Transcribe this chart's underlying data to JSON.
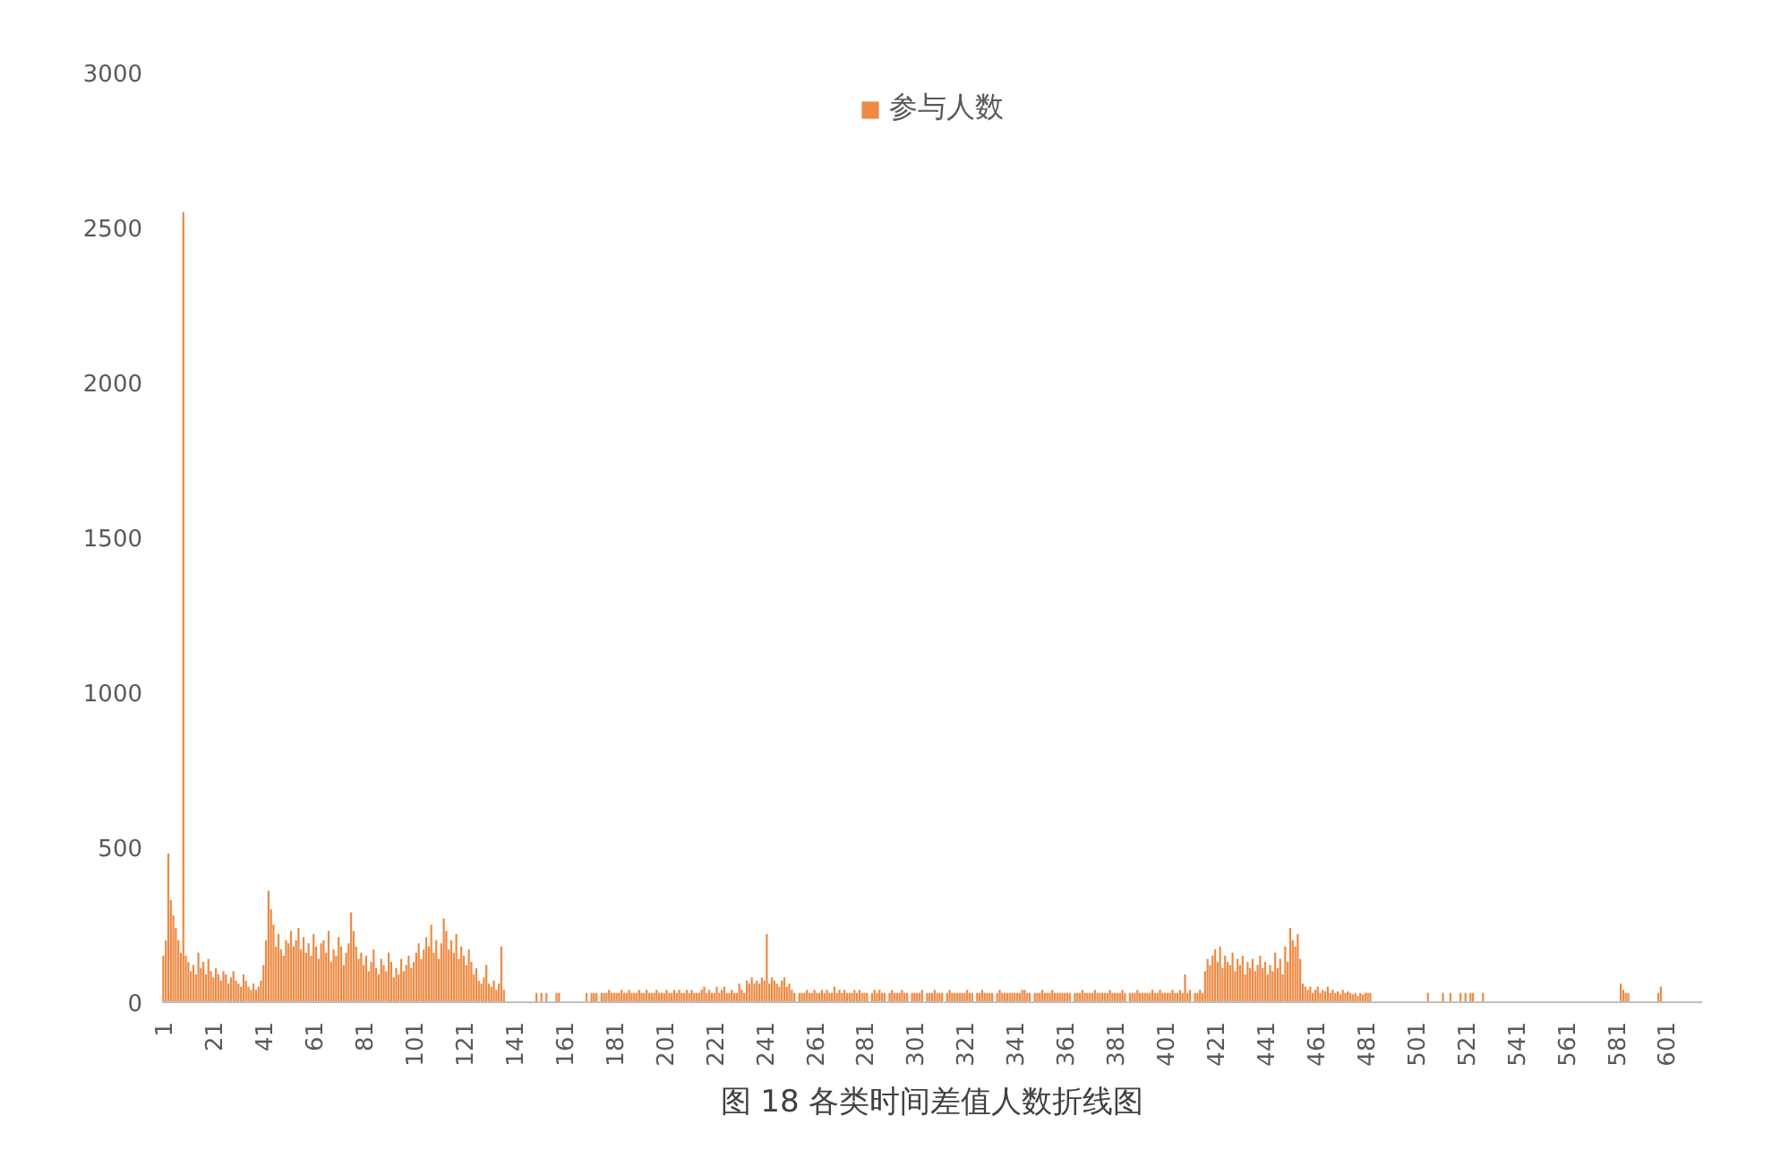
{
  "chart_data": {
    "type": "bar",
    "title": null,
    "annotations": [
      "图 18 各类时间差值人数折线图"
    ],
    "categories": [
      "1",
      null,
      null,
      null,
      null,
      null,
      null,
      null,
      null,
      null,
      null,
      null,
      null,
      null,
      null,
      null,
      null,
      null,
      null,
      null,
      "21",
      null,
      null,
      null,
      null,
      null,
      null,
      null,
      null,
      null,
      null,
      null,
      null,
      null,
      null,
      null,
      null,
      null,
      null,
      null,
      "41",
      null,
      null,
      null,
      null,
      null,
      null,
      null,
      null,
      null,
      null,
      null,
      null,
      null,
      null,
      null,
      null,
      null,
      null,
      null,
      "61",
      null,
      null,
      null,
      null,
      null,
      null,
      null,
      null,
      null,
      null,
      null,
      null,
      null,
      null,
      null,
      null,
      null,
      null,
      null,
      "81",
      null,
      null,
      null,
      null,
      null,
      null,
      null,
      null,
      null,
      null,
      null,
      null,
      null,
      null,
      null,
      null,
      null,
      null,
      null,
      "101",
      null,
      null,
      null,
      null,
      null,
      null,
      null,
      null,
      null,
      null,
      null,
      null,
      null,
      null,
      null,
      null,
      null,
      null,
      null,
      "121",
      null,
      null,
      null,
      null,
      null,
      null,
      null,
      null,
      null,
      null,
      null,
      null,
      null,
      null,
      null,
      null,
      null,
      null,
      null,
      "141",
      null,
      null,
      null,
      null,
      null,
      null,
      null,
      null,
      null,
      null,
      null,
      null,
      null,
      null,
      null,
      null,
      null,
      null,
      null,
      "161",
      null,
      null,
      null,
      null,
      null,
      null,
      null,
      null,
      null,
      null,
      null,
      null,
      null,
      null,
      null,
      null,
      null,
      null,
      null,
      "181",
      null,
      null,
      null,
      null,
      null,
      null,
      null,
      null,
      null,
      null,
      null,
      null,
      null,
      null,
      null,
      null,
      null,
      null,
      null,
      "201",
      null,
      null,
      null,
      null,
      null,
      null,
      null,
      null,
      null,
      null,
      null,
      null,
      null,
      null,
      null,
      null,
      null,
      null,
      null,
      "221",
      null,
      null,
      null,
      null,
      null,
      null,
      null,
      null,
      null,
      null,
      null,
      null,
      null,
      null,
      null,
      null,
      null,
      null,
      null,
      "241",
      null,
      null,
      null,
      null,
      null,
      null,
      null,
      null,
      null,
      null,
      null,
      null,
      null,
      null,
      null,
      null,
      null,
      null,
      null,
      "261",
      null,
      null,
      null,
      null,
      null,
      null,
      null,
      null,
      null,
      null,
      null,
      null,
      null,
      null,
      null,
      null,
      null,
      null,
      null,
      "281",
      null,
      null,
      null,
      null,
      null,
      null,
      null,
      null,
      null,
      null,
      null,
      null,
      null,
      null,
      null,
      null,
      null,
      null,
      null,
      "301",
      null,
      null,
      null,
      null,
      null,
      null,
      null,
      null,
      null,
      null,
      null,
      null,
      null,
      null,
      null,
      null,
      null,
      null,
      null,
      "321",
      null,
      null,
      null,
      null,
      null,
      null,
      null,
      null,
      null,
      null,
      null,
      null,
      null,
      null,
      null,
      null,
      null,
      null,
      null,
      "341",
      null,
      null,
      null,
      null,
      null,
      null,
      null,
      null,
      null,
      null,
      null,
      null,
      null,
      null,
      null,
      null,
      null,
      null,
      null,
      "361",
      null,
      null,
      null,
      null,
      null,
      null,
      null,
      null,
      null,
      null,
      null,
      null,
      null,
      null,
      null,
      null,
      null,
      null,
      null,
      "381",
      null,
      null,
      null,
      null,
      null,
      null,
      null,
      null,
      null,
      null,
      null,
      null,
      null,
      null,
      null,
      null,
      null,
      null,
      null,
      "401",
      null,
      null,
      null,
      null,
      null,
      null,
      null,
      null,
      null,
      null,
      null,
      null,
      null,
      null,
      null,
      null,
      null,
      null,
      null,
      "421",
      null,
      null,
      null,
      null,
      null,
      null,
      null,
      null,
      null,
      null,
      null,
      null,
      null,
      null,
      null,
      null,
      null,
      null,
      null,
      "441",
      null,
      null,
      null,
      null,
      null,
      null,
      null,
      null,
      null,
      null,
      null,
      null,
      null,
      null,
      null,
      null,
      null,
      null,
      null,
      "461",
      null,
      null,
      null,
      null,
      null,
      null,
      null,
      null,
      null,
      null,
      null,
      null,
      null,
      null,
      null,
      null,
      null,
      null,
      null,
      "481",
      null,
      null,
      null,
      null,
      null,
      null,
      null,
      null,
      null,
      null,
      null,
      null,
      null,
      null,
      null,
      null,
      null,
      null,
      null,
      "501",
      null,
      null,
      null,
      null,
      null,
      null,
      null,
      null,
      null,
      null,
      null,
      null,
      null,
      null,
      null,
      null,
      null,
      null,
      null,
      "521",
      null,
      null,
      null,
      null,
      null,
      null,
      null,
      null,
      null,
      null,
      null,
      null,
      null,
      null,
      null,
      null,
      null,
      null,
      null,
      "541",
      null,
      null,
      null,
      null,
      null,
      null,
      null,
      null,
      null,
      null,
      null,
      null,
      null,
      null,
      null,
      null,
      null,
      null,
      null,
      "561",
      null,
      null,
      null,
      null,
      null,
      null,
      null,
      null,
      null,
      null,
      null,
      null,
      null,
      null,
      null,
      null,
      null,
      null,
      null,
      "581",
      null,
      null,
      null,
      null,
      null,
      null,
      null,
      null,
      null,
      null,
      null,
      null,
      null,
      null,
      null,
      null,
      null,
      null,
      null,
      "601",
      null,
      null,
      null,
      null,
      null,
      null,
      null,
      null,
      null,
      null,
      null,
      null,
      null,
      null
    ],
    "series": [
      {
        "name": "参与人数",
        "color": "#ed8b45",
        "values": [
          150,
          200,
          480,
          330,
          280,
          240,
          200,
          160,
          2550,
          150,
          130,
          100,
          120,
          90,
          160,
          110,
          130,
          90,
          140,
          100,
          80,
          110,
          90,
          70,
          100,
          90,
          60,
          80,
          100,
          70,
          60,
          50,
          90,
          70,
          50,
          40,
          60,
          40,
          50,
          70,
          120,
          200,
          360,
          300,
          250,
          180,
          220,
          170,
          150,
          200,
          190,
          230,
          180,
          200,
          240,
          170,
          210,
          160,
          190,
          150,
          220,
          180,
          140,
          190,
          200,
          160,
          230,
          130,
          170,
          150,
          210,
          180,
          120,
          160,
          190,
          290,
          230,
          180,
          140,
          160,
          120,
          150,
          100,
          130,
          170,
          110,
          90,
          140,
          120,
          100,
          160,
          130,
          80,
          110,
          90,
          140,
          100,
          120,
          150,
          110,
          130,
          160,
          190,
          140,
          170,
          210,
          180,
          250,
          160,
          200,
          140,
          190,
          270,
          230,
          170,
          200,
          160,
          220,
          140,
          180,
          150,
          120,
          170,
          130,
          90,
          110,
          70,
          60,
          80,
          120,
          60,
          50,
          70,
          40,
          60,
          180,
          40,
          0,
          0,
          0,
          0,
          0,
          0,
          0,
          0,
          0,
          0,
          0,
          0,
          30,
          0,
          30,
          0,
          30,
          0,
          0,
          0,
          30,
          30,
          0,
          0,
          0,
          0,
          0,
          0,
          0,
          0,
          0,
          0,
          30,
          0,
          30,
          30,
          30,
          0,
          30,
          30,
          30,
          40,
          30,
          30,
          30,
          30,
          40,
          30,
          30,
          40,
          30,
          30,
          30,
          40,
          30,
          30,
          40,
          30,
          30,
          30,
          40,
          30,
          30,
          30,
          40,
          30,
          30,
          40,
          30,
          40,
          30,
          30,
          40,
          30,
          40,
          30,
          30,
          30,
          40,
          50,
          30,
          40,
          30,
          30,
          50,
          30,
          40,
          50,
          30,
          30,
          40,
          30,
          30,
          60,
          40,
          30,
          70,
          60,
          80,
          60,
          70,
          60,
          80,
          70,
          220,
          60,
          80,
          70,
          60,
          50,
          70,
          80,
          50,
          60,
          40,
          30,
          0,
          30,
          30,
          30,
          40,
          30,
          30,
          40,
          30,
          30,
          40,
          30,
          40,
          30,
          30,
          50,
          30,
          40,
          30,
          40,
          30,
          30,
          30,
          40,
          30,
          40,
          30,
          30,
          30,
          0,
          30,
          40,
          30,
          40,
          30,
          30,
          0,
          30,
          40,
          30,
          30,
          30,
          40,
          30,
          30,
          0,
          30,
          30,
          30,
          30,
          40,
          0,
          30,
          30,
          30,
          40,
          30,
          30,
          30,
          0,
          30,
          40,
          30,
          30,
          30,
          30,
          30,
          30,
          40,
          30,
          30,
          0,
          30,
          30,
          40,
          30,
          30,
          30,
          30,
          0,
          30,
          40,
          30,
          30,
          30,
          30,
          30,
          30,
          30,
          30,
          40,
          40,
          30,
          30,
          0,
          30,
          30,
          30,
          40,
          30,
          30,
          30,
          40,
          30,
          30,
          30,
          30,
          30,
          30,
          30,
          0,
          30,
          30,
          30,
          40,
          30,
          30,
          30,
          30,
          40,
          30,
          30,
          30,
          30,
          30,
          40,
          30,
          30,
          30,
          30,
          40,
          30,
          0,
          30,
          30,
          30,
          40,
          30,
          30,
          30,
          30,
          30,
          40,
          30,
          30,
          40,
          30,
          30,
          30,
          30,
          40,
          30,
          30,
          40,
          30,
          90,
          30,
          40,
          0,
          30,
          30,
          40,
          30,
          100,
          140,
          120,
          150,
          170,
          130,
          180,
          110,
          150,
          130,
          120,
          160,
          100,
          140,
          120,
          150,
          90,
          130,
          110,
          140,
          100,
          120,
          150,
          110,
          130,
          90,
          120,
          100,
          160,
          110,
          140,
          90,
          180,
          130,
          240,
          200,
          180,
          220,
          140,
          60,
          50,
          40,
          50,
          30,
          40,
          50,
          30,
          40,
          35,
          50,
          30,
          40,
          30,
          35,
          25,
          40,
          30,
          35,
          30,
          25,
          30,
          20,
          30,
          25,
          30,
          30,
          30,
          0,
          0,
          0,
          0,
          0,
          0,
          0,
          0,
          0,
          0,
          0,
          0,
          0,
          0,
          0,
          0,
          0,
          0,
          0,
          0,
          0,
          0,
          30,
          0,
          0,
          0,
          0,
          0,
          30,
          0,
          0,
          30,
          0,
          0,
          0,
          30,
          0,
          30,
          0,
          30,
          30,
          0,
          0,
          0,
          30,
          0,
          0,
          0,
          0,
          0,
          0,
          0,
          0,
          0,
          0,
          0,
          0,
          0,
          0,
          0,
          0,
          0,
          0,
          0,
          0,
          0,
          0,
          0,
          0,
          0,
          0,
          0,
          0,
          0,
          0,
          0,
          0,
          0,
          0,
          0,
          0,
          0,
          0,
          0,
          0,
          0,
          0,
          0,
          0,
          0,
          0,
          0,
          0,
          0,
          0,
          0,
          0,
          0,
          0,
          60,
          40,
          30,
          30,
          0,
          0,
          0,
          0,
          0,
          0,
          0,
          0,
          0,
          0,
          0,
          30,
          50,
          0,
          0,
          0,
          0,
          0,
          0,
          0,
          0,
          0,
          0,
          0,
          0,
          0,
          0,
          0,
          0
        ]
      }
    ],
    "ylim": [
      0,
      3000
    ],
    "yticks": [
      0,
      500,
      1000,
      1500,
      2000,
      2500,
      3000
    ],
    "grid": false,
    "legend": "top"
  }
}
